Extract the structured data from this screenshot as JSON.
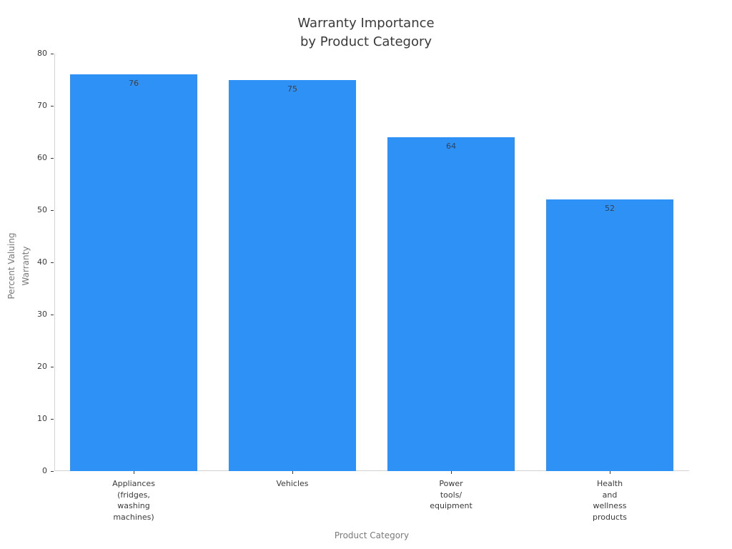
{
  "chart_data": {
    "type": "bar",
    "title": "Warranty Importance\nby Product Category",
    "xlabel": "Product Category",
    "ylabel": "Percent Valuing\nWarranty",
    "categories": [
      "Appliances\n(fridges,\nwashing\nmachines)",
      "Vehicles",
      "Power\ntools/\nequipment",
      "Health\nand\nwellness\nproducts"
    ],
    "values": [
      76,
      75,
      64,
      52
    ],
    "value_labels": [
      "76",
      "75",
      "64",
      "52"
    ],
    "ylim": [
      0,
      80
    ],
    "yticks": [
      0,
      10,
      20,
      30,
      40,
      50,
      60,
      70,
      80
    ],
    "grid": false,
    "legend": null,
    "bar_color": "#2E91F5",
    "bar_width_fraction": 0.8
  },
  "style": {
    "background_color": "#ffffff",
    "title_color": "#3a3a3a",
    "axis_label_color": "#7a7a7a",
    "tick_label_color": "#3a3a3a",
    "value_label_color": "#39404a",
    "spine_color": "#d4d4d4",
    "tick_mark_color": "#3a3a3a"
  }
}
